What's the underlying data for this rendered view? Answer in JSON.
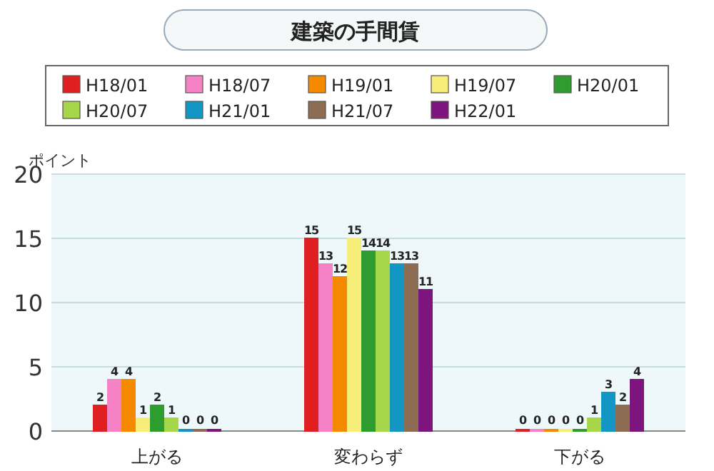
{
  "chart_data": {
    "type": "bar",
    "title": "建築の手間賃",
    "ylabel": "ポイント",
    "categories": [
      "上がる",
      "変わらず",
      "下がる"
    ],
    "series": [
      {
        "name": "H18/01",
        "color": "#e02020",
        "values": [
          2,
          15,
          0
        ]
      },
      {
        "name": "H18/07",
        "color": "#f482c4",
        "values": [
          4,
          13,
          0
        ]
      },
      {
        "name": "H19/01",
        "color": "#f58a00",
        "values": [
          4,
          12,
          0
        ]
      },
      {
        "name": "H19/07",
        "color": "#f7ee7a",
        "values": [
          1,
          15,
          0
        ]
      },
      {
        "name": "H20/01",
        "color": "#2e9c2e",
        "values": [
          2,
          14,
          0
        ]
      },
      {
        "name": "H20/07",
        "color": "#a6d64a",
        "values": [
          1,
          14,
          1
        ]
      },
      {
        "name": "H21/01",
        "color": "#1496c4",
        "values": [
          0,
          13,
          3
        ]
      },
      {
        "name": "H21/07",
        "color": "#8c6c52",
        "values": [
          0,
          13,
          2
        ]
      },
      {
        "name": "H22/01",
        "color": "#7e147e",
        "values": [
          0,
          11,
          4
        ]
      }
    ],
    "ylim": [
      0,
      20
    ],
    "yticks": [
      0,
      5,
      10,
      15,
      20
    ],
    "grid": "y",
    "legend": "top",
    "data_labels": true
  }
}
